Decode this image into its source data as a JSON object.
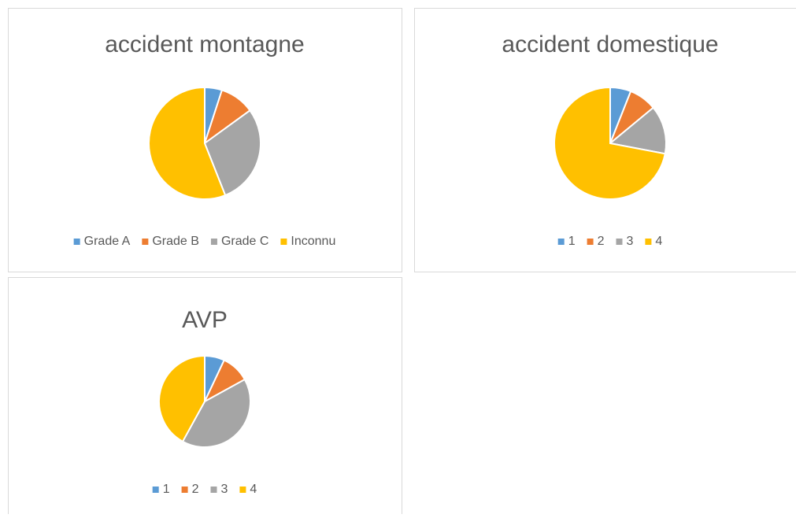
{
  "chart_data": [
    {
      "type": "pie",
      "title": "accident montagne",
      "categories": [
        "Grade A",
        "Grade B",
        "Grade C",
        "Inconnu"
      ],
      "values": [
        5,
        10,
        29,
        56
      ],
      "colors": [
        "#5b9bd5",
        "#ed7d31",
        "#a5a5a5",
        "#ffc000"
      ]
    },
    {
      "type": "pie",
      "title": "accident domestique",
      "categories": [
        "1",
        "2",
        "3",
        "4"
      ],
      "values": [
        6,
        8,
        14,
        72
      ],
      "colors": [
        "#5b9bd5",
        "#ed7d31",
        "#a5a5a5",
        "#ffc000"
      ]
    },
    {
      "type": "pie",
      "title": "AVP",
      "categories": [
        "1",
        "2",
        "3",
        "4"
      ],
      "values": [
        7,
        10,
        41,
        42
      ],
      "colors": [
        "#5b9bd5",
        "#ed7d31",
        "#a5a5a5",
        "#ffc000"
      ]
    }
  ]
}
